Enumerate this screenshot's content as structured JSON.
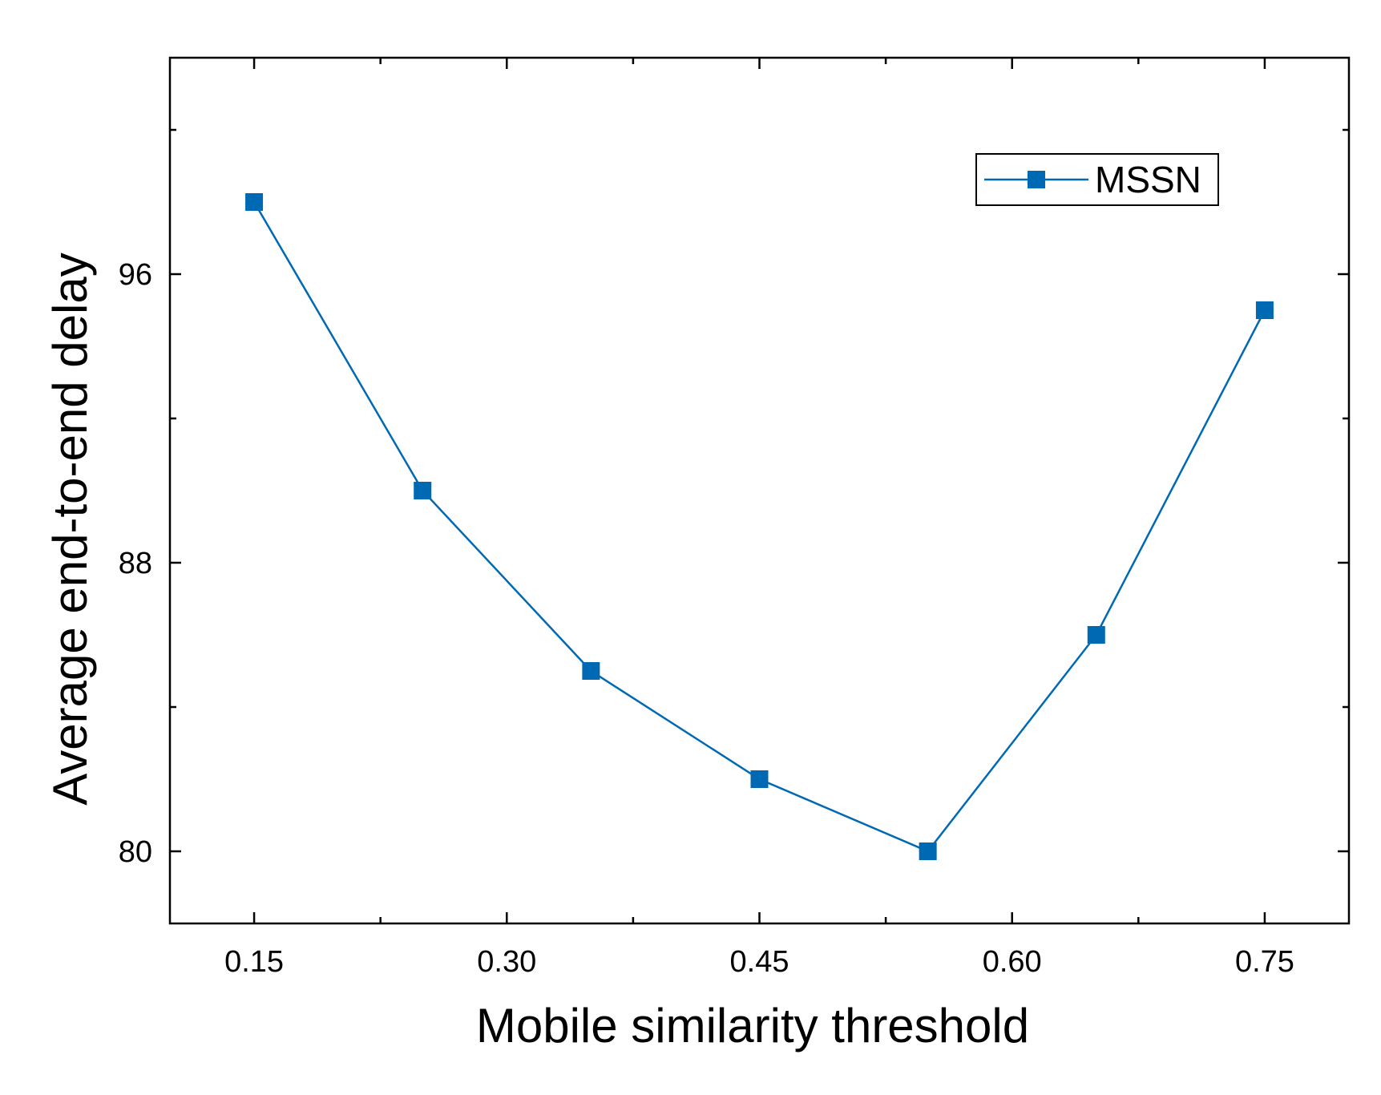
{
  "chart_data": {
    "type": "line",
    "title": "",
    "xlabel": "Mobile similarity threshold",
    "ylabel": "Average end-to-end delay",
    "xlim": [
      0.1,
      0.8
    ],
    "ylim": [
      78,
      102
    ],
    "x_ticks": [
      "0.15",
      "0.30",
      "0.45",
      "0.60",
      "0.75"
    ],
    "y_ticks": [
      "80",
      "88",
      "96"
    ],
    "x": [
      0.15,
      0.25,
      0.35,
      0.45,
      0.55,
      0.65,
      0.75
    ],
    "series": [
      {
        "name": "MSSN",
        "values": [
          98.0,
          90.0,
          85.0,
          82.0,
          80.0,
          86.0,
          95.0
        ],
        "color": "#0069b4",
        "marker": "square"
      }
    ],
    "legend_position": "top-right",
    "grid": false
  }
}
